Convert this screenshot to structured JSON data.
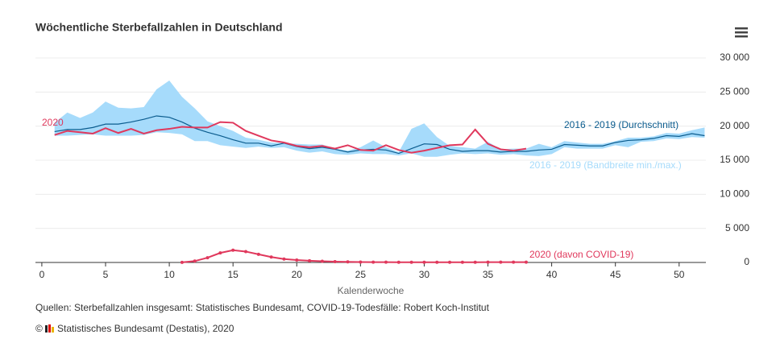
{
  "chart_data": {
    "type": "line",
    "title": "Wöchentliche Sterbefallzahlen in Deutschland",
    "xlabel": "Kalenderwoche",
    "source": "Quellen: Sterbefallzahlen insgesamt: Statistisches Bundesamt, COVID-19-Todesfälle: Robert Koch-Institut",
    "copyright_symbol": "©",
    "credit": "Statistisches Bundesamt (Destatis), 2020",
    "x": [
      1,
      2,
      3,
      4,
      5,
      6,
      7,
      8,
      9,
      10,
      11,
      12,
      13,
      14,
      15,
      16,
      17,
      18,
      19,
      20,
      21,
      22,
      23,
      24,
      25,
      26,
      27,
      28,
      29,
      30,
      31,
      32,
      33,
      34,
      35,
      36,
      37,
      38,
      39,
      40,
      41,
      42,
      43,
      44,
      45,
      46,
      47,
      48,
      49,
      50,
      51,
      52
    ],
    "xlim": [
      -0.5,
      52.1
    ],
    "xticks": [
      0,
      5,
      10,
      15,
      20,
      25,
      30,
      35,
      40,
      45,
      50
    ],
    "ylim": [
      0,
      30000
    ],
    "yticks": [
      {
        "value": 0,
        "label": "0"
      },
      {
        "value": 5000,
        "label": "5 000"
      },
      {
        "value": 10000,
        "label": "10 000"
      },
      {
        "value": 15000,
        "label": "15 000"
      },
      {
        "value": 20000,
        "label": "20 000"
      },
      {
        "value": 25000,
        "label": "25 000"
      },
      {
        "value": 30000,
        "label": "30 000"
      }
    ],
    "grid": true,
    "band": {
      "name": "2016 - 2019 (Bandbreite min./max.)",
      "color": "#a6dbfb",
      "high": [
        20500,
        22000,
        21200,
        22000,
        23600,
        22700,
        22600,
        22800,
        25400,
        26700,
        24300,
        22600,
        20700,
        20000,
        19300,
        18300,
        18000,
        17600,
        17500,
        17400,
        17300,
        17300,
        16700,
        16400,
        16900,
        17900,
        16900,
        16200,
        19600,
        20400,
        18400,
        17100,
        16900,
        16700,
        17700,
        16600,
        16700,
        16700,
        17400,
        16900,
        17800,
        17600,
        17400,
        17400,
        17800,
        18300,
        18300,
        18500,
        19000,
        18900,
        19400,
        19800
      ],
      "low": [
        18600,
        18600,
        18700,
        18800,
        18600,
        18600,
        18600,
        18700,
        19100,
        19000,
        18800,
        17800,
        17800,
        17200,
        17000,
        16800,
        17000,
        16800,
        16900,
        16400,
        16100,
        16300,
        15900,
        15800,
        16000,
        15900,
        15900,
        15700,
        16000,
        15500,
        15500,
        15800,
        16000,
        15900,
        16000,
        15800,
        15900,
        15700,
        15600,
        15900,
        16900,
        16700,
        16700,
        16700,
        17200,
        16900,
        17700,
        17800,
        18200,
        18100,
        18400,
        18300
      ]
    },
    "series": [
      {
        "name": "2016 - 2019 (Durchschnitt)",
        "color": "#0b5c8e",
        "markers": false,
        "values": [
          19200,
          19500,
          19500,
          19800,
          20300,
          20300,
          20600,
          21000,
          21500,
          21300,
          20600,
          19700,
          19100,
          18600,
          18000,
          17500,
          17500,
          17100,
          17500,
          17000,
          16700,
          16900,
          16600,
          16200,
          16500,
          16600,
          16500,
          16000,
          16700,
          17400,
          17300,
          16600,
          16300,
          16400,
          16400,
          16200,
          16300,
          16300,
          16500,
          16600,
          17300,
          17200,
          17100,
          17100,
          17600,
          17900,
          18000,
          18200,
          18600,
          18500,
          18900,
          18600
        ]
      },
      {
        "name": "2020",
        "color": "#e0385c",
        "markers": false,
        "values": [
          18700,
          19300,
          19100,
          18900,
          19700,
          19000,
          19600,
          18900,
          19400,
          19600,
          19900,
          19800,
          19800,
          20600,
          20500,
          19300,
          18600,
          17900,
          17600,
          17100,
          16900,
          17100,
          16700,
          17200,
          16500,
          16400,
          17200,
          16500,
          16100,
          16400,
          16800,
          17200,
          17300,
          19500,
          17400,
          16600,
          16400,
          16700,
          null,
          null,
          null,
          null,
          null,
          null,
          null,
          null,
          null,
          null,
          null,
          null,
          null,
          null
        ]
      },
      {
        "name": "2020 (davon COVID-19)",
        "color": "#e0385c",
        "markers": true,
        "values": [
          null,
          null,
          null,
          null,
          null,
          null,
          null,
          null,
          null,
          null,
          20,
          200,
          700,
          1400,
          1800,
          1600,
          1200,
          800,
          500,
          350,
          250,
          180,
          120,
          90,
          60,
          50,
          40,
          30,
          30,
          30,
          30,
          30,
          30,
          30,
          40,
          40,
          40,
          50,
          null,
          null,
          null,
          null,
          null,
          null,
          null,
          null,
          null,
          null,
          null,
          null,
          null,
          null
        ]
      }
    ]
  }
}
